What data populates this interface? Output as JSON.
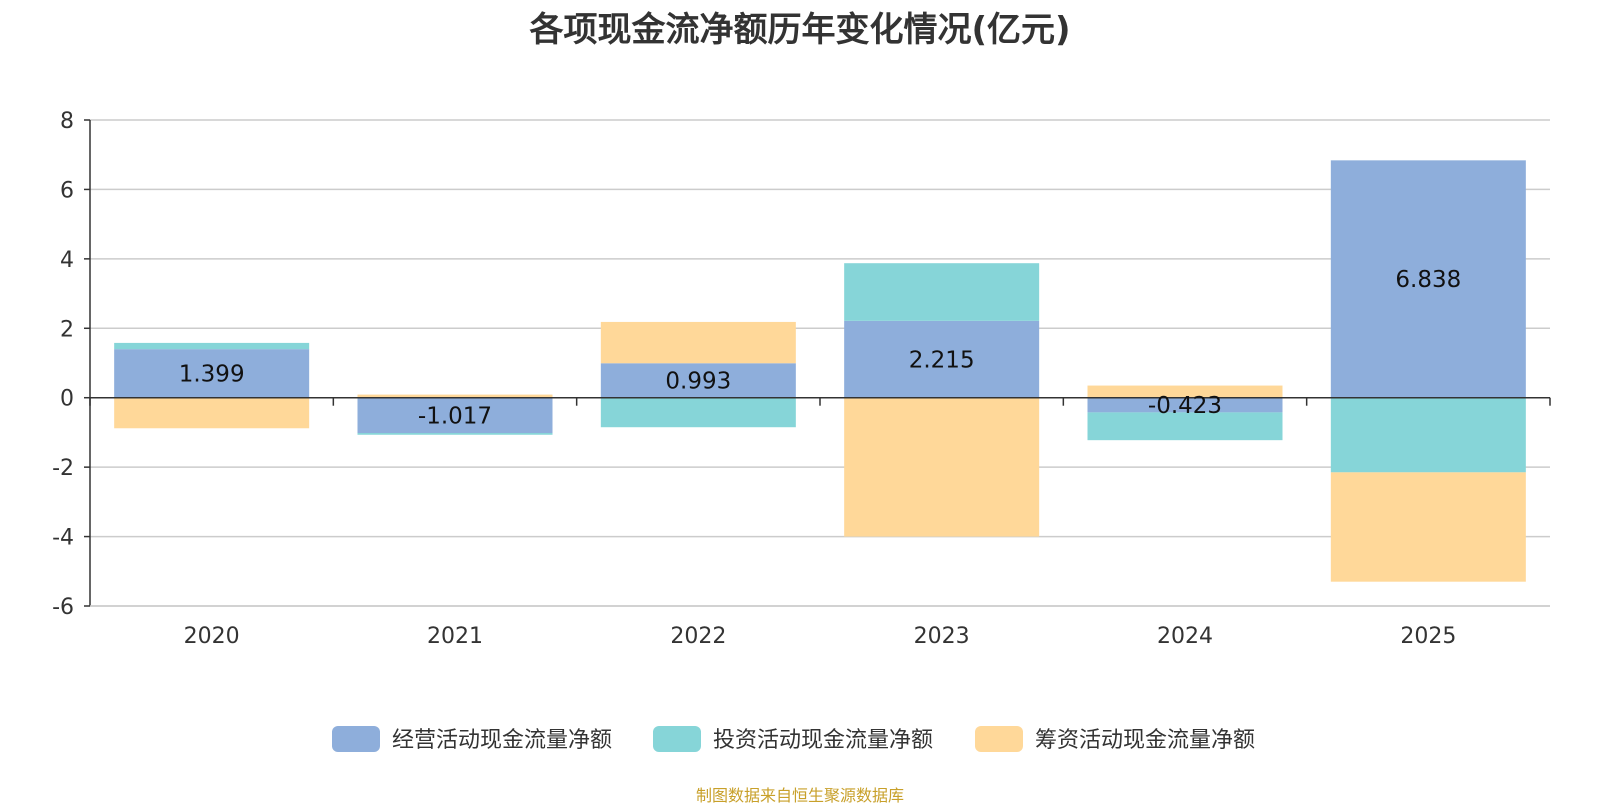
{
  "chart_data": {
    "type": "bar",
    "stacked": true,
    "title": "各项现金流净额历年变化情况(亿元)",
    "categories": [
      "2020",
      "2021",
      "2022",
      "2023",
      "2024",
      "2025"
    ],
    "ylim": [
      -6,
      8
    ],
    "yticks": [
      8,
      6,
      4,
      2,
      0,
      -2,
      -4,
      -6
    ],
    "grid": true,
    "legend_position": "bottom",
    "series": [
      {
        "name": "经营活动现金流量净额",
        "color": "#8eaedb",
        "values": [
          1.399,
          -1.017,
          0.993,
          2.215,
          -0.423,
          6.838
        ],
        "labels": [
          "1.399",
          "-1.017",
          "0.993",
          "2.215",
          "-0.423",
          "6.838"
        ]
      },
      {
        "name": "投资活动现金流量净额",
        "color": "#86d5d8",
        "values": [
          0.18,
          -0.05,
          -0.85,
          1.66,
          -0.8,
          -2.15
        ]
      },
      {
        "name": "筹资活动现金流量净额",
        "color": "#ffd899",
        "values": [
          -0.88,
          0.09,
          1.19,
          -4.0,
          0.35,
          -3.15
        ]
      }
    ]
  },
  "source_note": "制图数据来自恒生聚源数据库"
}
